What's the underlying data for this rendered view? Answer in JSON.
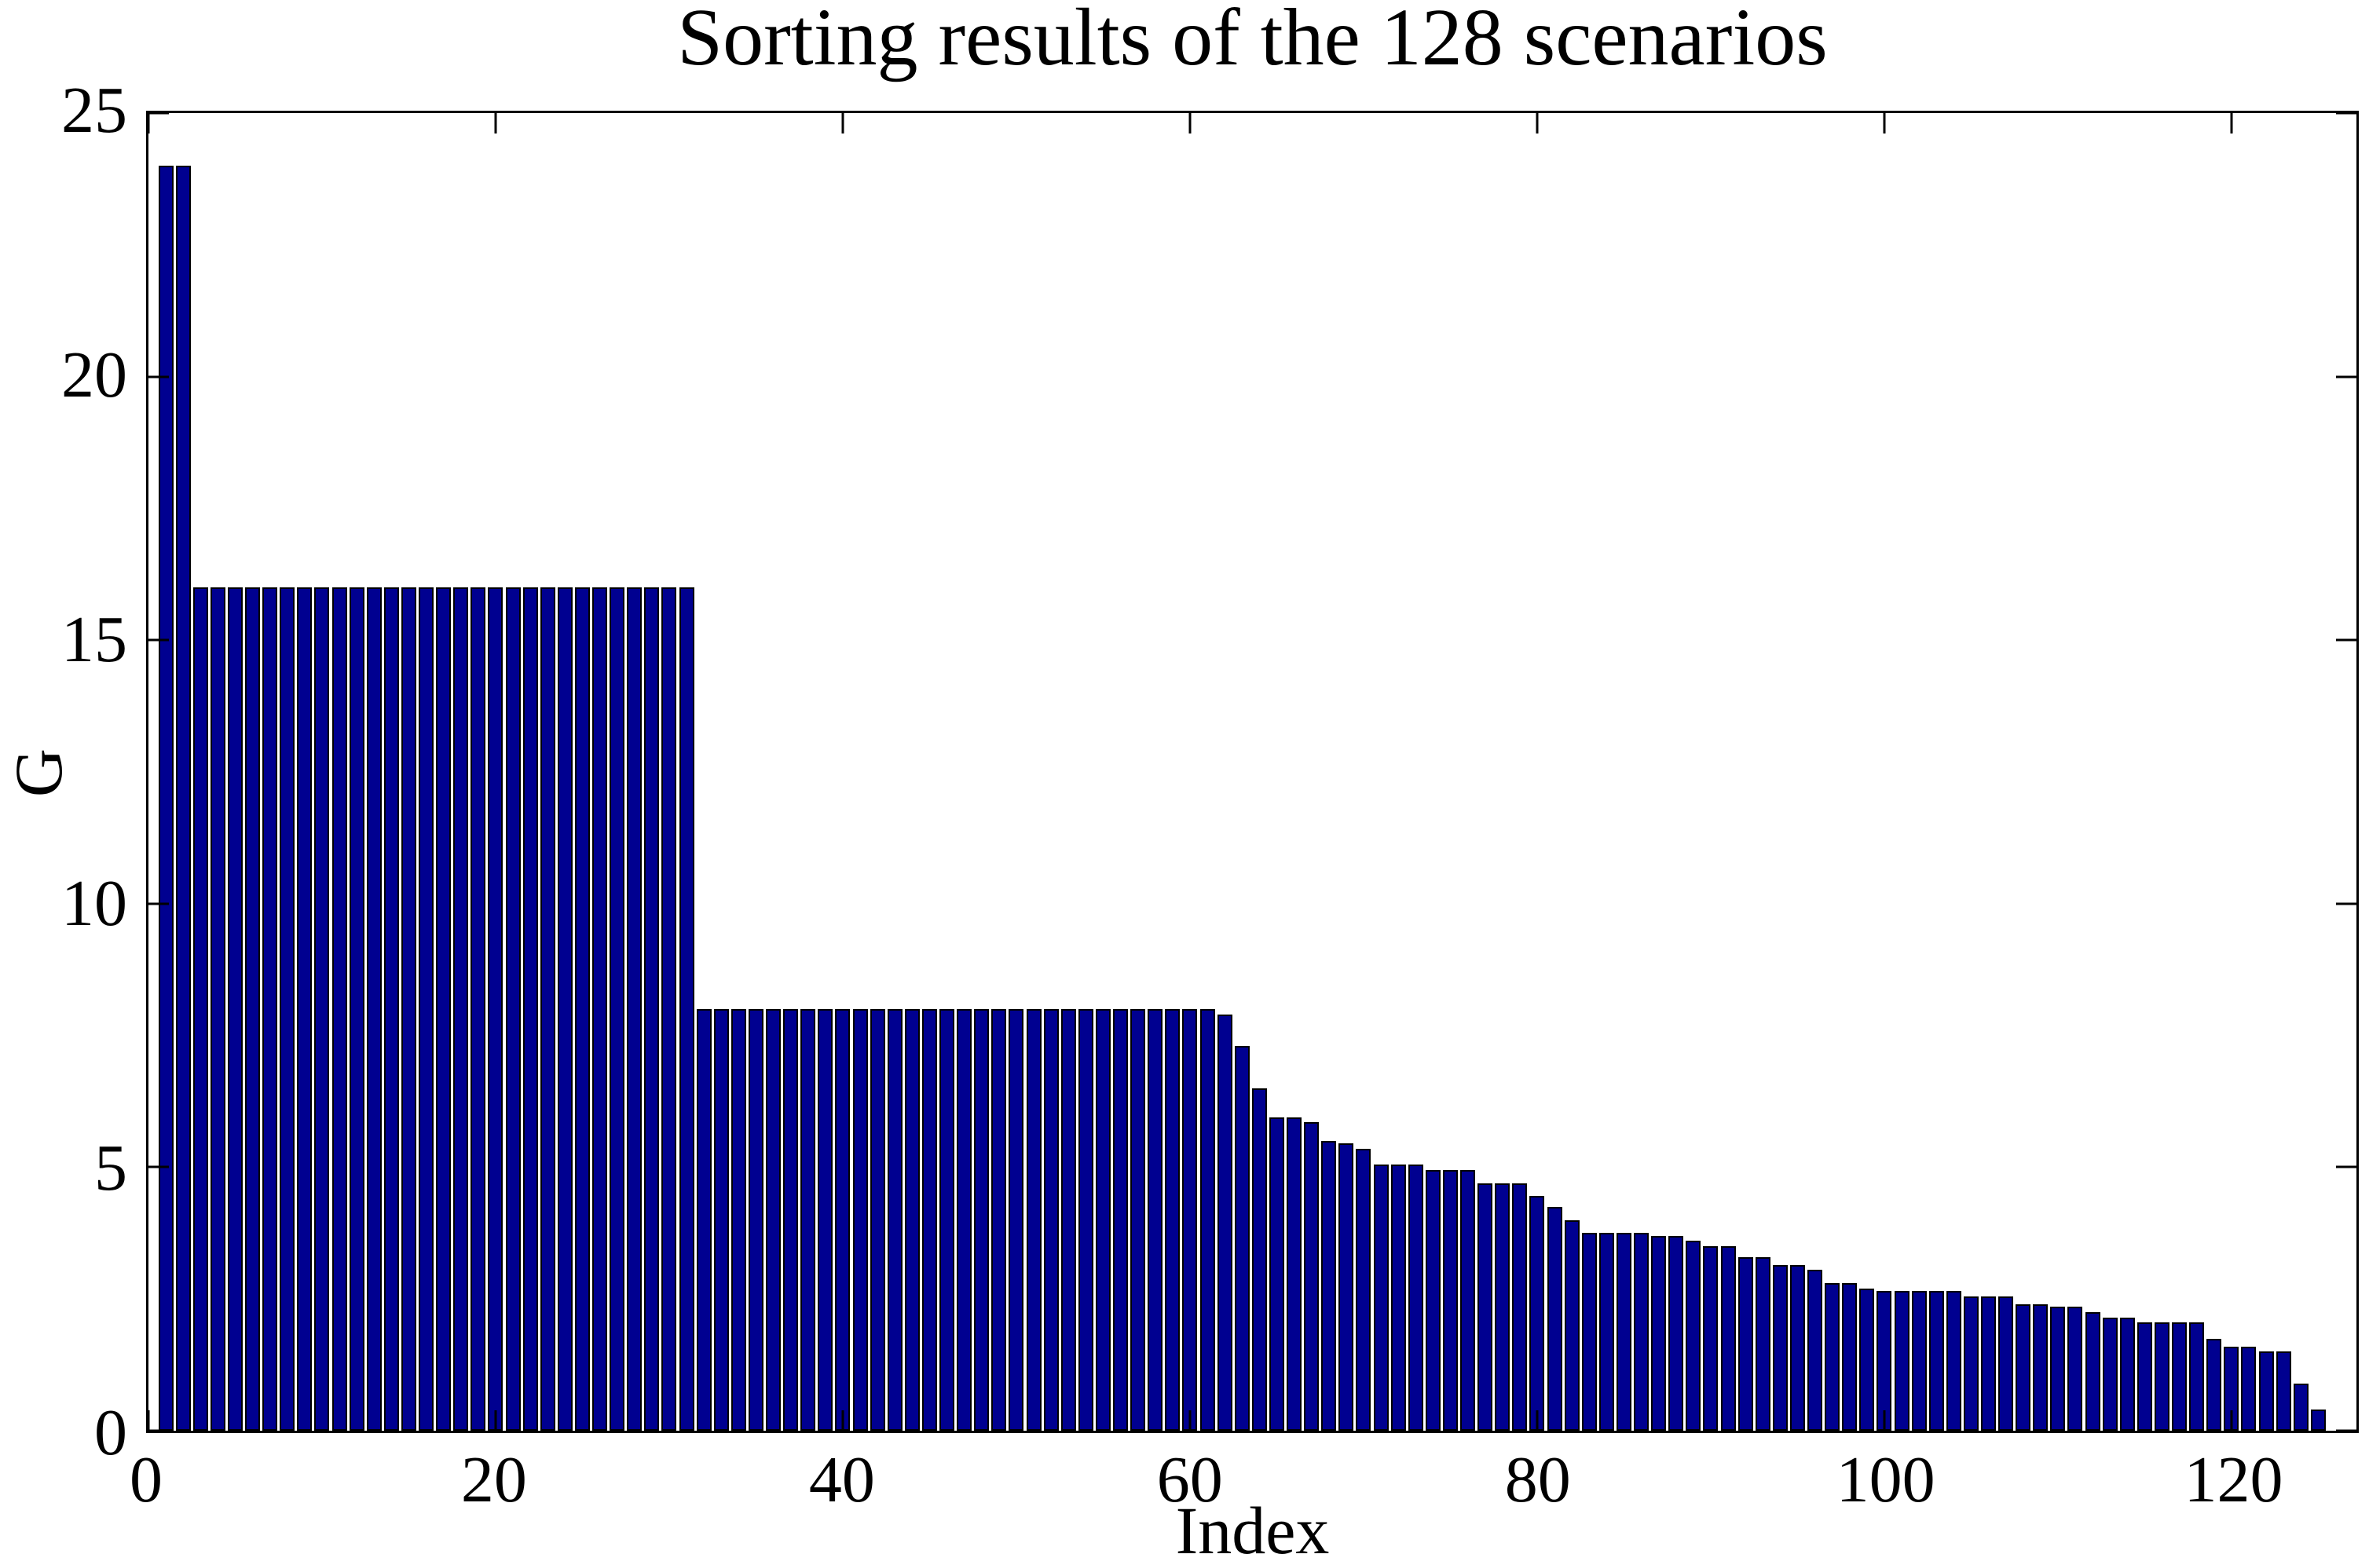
{
  "chart_data": {
    "type": "bar",
    "title": "Sorting results of the 128 scenarios",
    "xlabel": "Index",
    "ylabel": "G",
    "x_start": 1,
    "xlim": [
      0,
      127.2
    ],
    "ylim": [
      0,
      25
    ],
    "x_ticks": [
      0,
      20,
      40,
      60,
      80,
      100,
      120
    ],
    "y_ticks": [
      0,
      5,
      10,
      15,
      20,
      25
    ],
    "grid": false,
    "bar_color": "#000090",
    "bar_edge_color": "#000000",
    "bar_width_units": 0.86,
    "values": [
      24,
      24,
      16,
      16,
      16,
      16,
      16,
      16,
      16,
      16,
      16,
      16,
      16,
      16,
      16,
      16,
      16,
      16,
      16,
      16,
      16,
      16,
      16,
      16,
      16,
      16,
      16,
      16,
      16,
      16,
      16,
      8,
      8,
      8,
      8,
      8,
      8,
      8,
      8,
      8,
      8,
      8,
      8,
      8,
      8,
      8,
      8,
      8,
      8,
      8,
      8,
      8,
      8,
      8,
      8,
      8,
      8,
      8,
      8,
      8,
      8,
      7.9,
      7.3,
      6.5,
      5.95,
      5.95,
      5.85,
      5.5,
      5.45,
      5.35,
      5.05,
      5.05,
      5.05,
      4.95,
      4.95,
      4.95,
      4.7,
      4.7,
      4.7,
      4.45,
      4.25,
      4.0,
      3.75,
      3.75,
      3.75,
      3.75,
      3.7,
      3.7,
      3.6,
      3.5,
      3.5,
      3.3,
      3.3,
      3.15,
      3.15,
      3.05,
      2.8,
      2.8,
      2.7,
      2.65,
      2.65,
      2.65,
      2.65,
      2.65,
      2.55,
      2.55,
      2.55,
      2.4,
      2.4,
      2.35,
      2.35,
      2.25,
      2.15,
      2.15,
      2.05,
      2.05,
      2.05,
      2.05,
      1.75,
      1.6,
      1.6,
      1.5,
      1.5,
      0.9,
      0.4
    ]
  }
}
